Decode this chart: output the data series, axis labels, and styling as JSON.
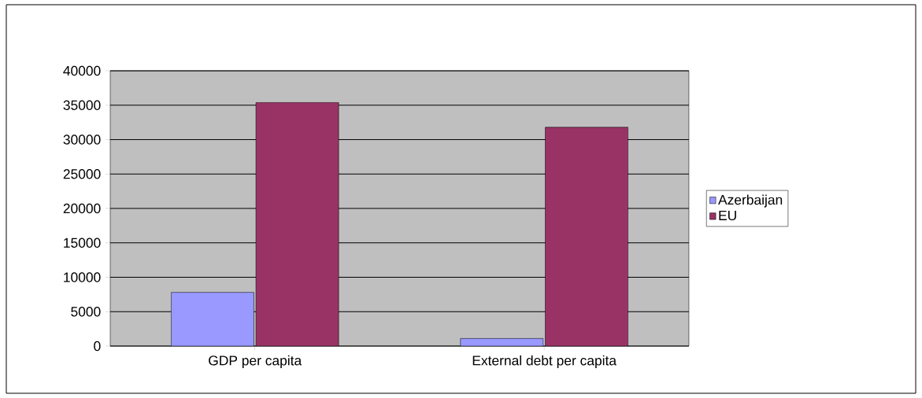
{
  "chart_data": {
    "type": "bar",
    "categories": [
      "GDP per capita",
      "External debt per capita"
    ],
    "series": [
      {
        "name": "Azerbaijan",
        "color": "#9999ff",
        "values": [
          7800,
          1100
        ]
      },
      {
        "name": "EU",
        "color": "#993366",
        "values": [
          35400,
          31800
        ]
      }
    ],
    "ylim": [
      0,
      40000
    ],
    "yticks": [
      0,
      5000,
      10000,
      15000,
      20000,
      25000,
      30000,
      35000,
      40000
    ],
    "grid": "y",
    "legend": "right"
  }
}
